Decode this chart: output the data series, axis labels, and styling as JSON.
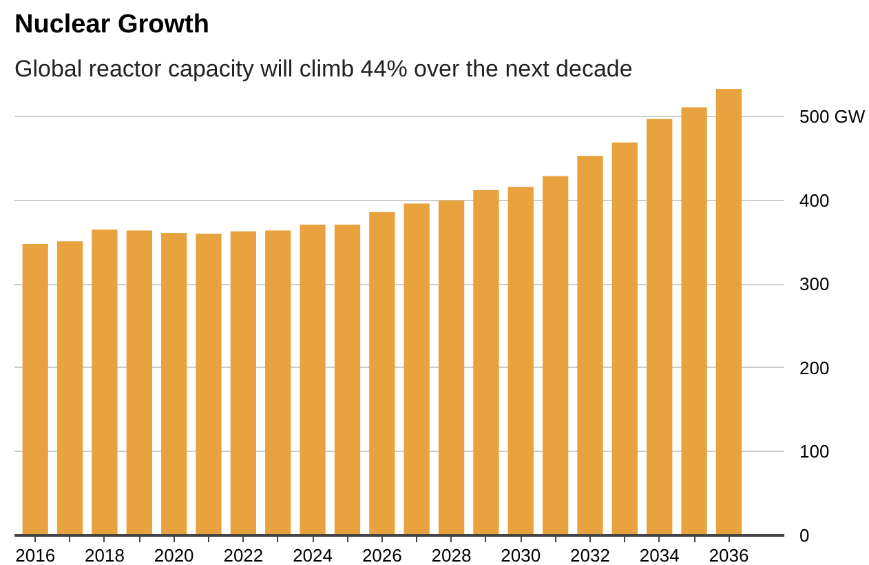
{
  "chart_data": {
    "type": "bar",
    "title": "Nuclear Growth",
    "subtitle": "Global reactor capacity will climb 44% over the next decade",
    "x": [
      2016,
      2017,
      2018,
      2019,
      2020,
      2021,
      2022,
      2023,
      2024,
      2025,
      2026,
      2027,
      2028,
      2029,
      2030,
      2031,
      2032,
      2033,
      2034,
      2035,
      2036
    ],
    "values": [
      348,
      351,
      365,
      364,
      361,
      360,
      363,
      364,
      371,
      371,
      386,
      396,
      400,
      412,
      416,
      429,
      453,
      469,
      497,
      511,
      533
    ],
    "color": "#e8a23e",
    "xlim": [
      2015.4,
      2037.6
    ],
    "xticks": [
      2016,
      {
        "value": 2017,
        "label": null
      },
      2018,
      {
        "value": 2019,
        "label": null
      },
      2020,
      {
        "value": 2021,
        "label": null
      },
      2022,
      {
        "value": 2023,
        "label": null
      },
      2024,
      {
        "value": 2025,
        "label": null
      },
      2026,
      {
        "value": 2027,
        "label": null
      },
      2028,
      {
        "value": 2029,
        "label": null
      },
      2030,
      {
        "value": 2031,
        "label": null
      },
      2032,
      {
        "value": 2033,
        "label": null
      },
      2034,
      {
        "value": 2035,
        "label": null
      },
      2036
    ],
    "ylim": [
      0,
      533
    ],
    "yticks": [
      0,
      100,
      200,
      300,
      400,
      {
        "value": 500,
        "label": "500 GW"
      }
    ],
    "grid": "y"
  }
}
